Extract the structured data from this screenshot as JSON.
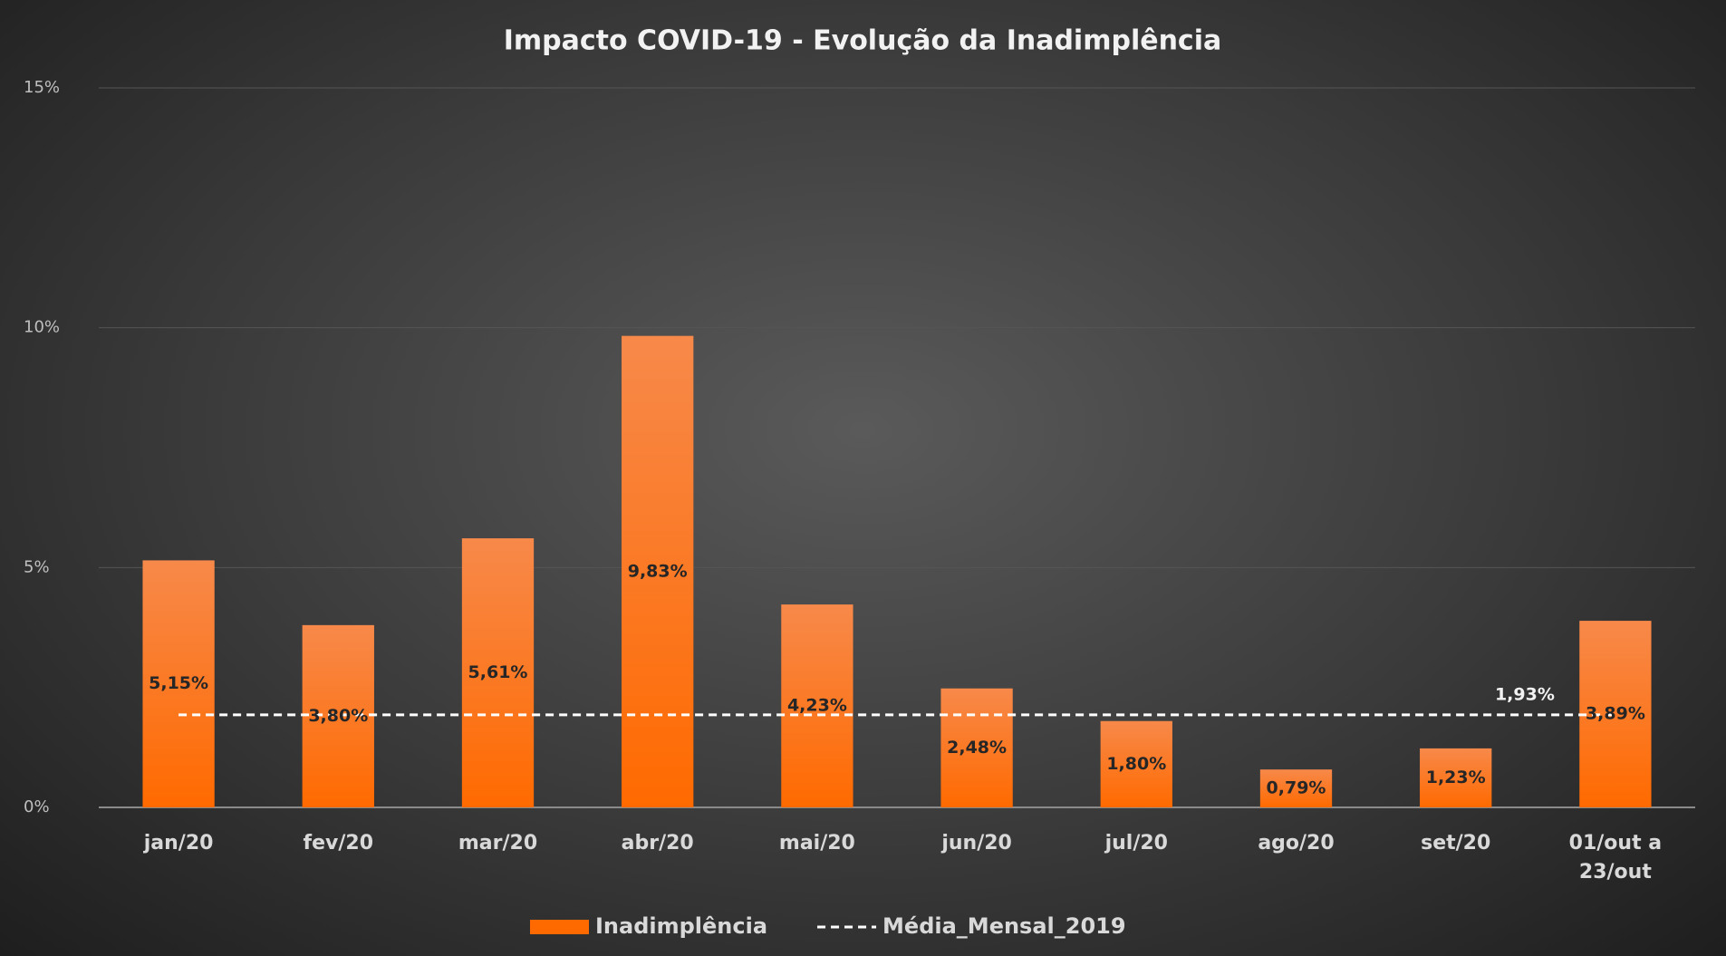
{
  "chart_data": {
    "type": "bar",
    "title": "Impacto COVID-19 - Evolução da Inadimplência",
    "categories": [
      "jan/20",
      "fev/20",
      "mar/20",
      "abr/20",
      "mai/20",
      "jun/20",
      "jul/20",
      "ago/20",
      "set/20",
      "01/out a 23/out"
    ],
    "series": [
      {
        "name": "Inadimplência",
        "type": "bar",
        "color": "#ff6a00",
        "values": [
          5.15,
          3.8,
          5.61,
          9.83,
          4.23,
          2.48,
          1.8,
          0.79,
          1.23,
          3.89
        ],
        "value_labels": [
          "5,15%",
          "3,80%",
          "5,61%",
          "9,83%",
          "4,23%",
          "2,48%",
          "1,80%",
          "0,79%",
          "1,23%",
          "3,89%"
        ]
      },
      {
        "name": "Média_Mensal_2019",
        "type": "line",
        "color": "#ffffff",
        "dashed": true,
        "values": [
          1.93,
          1.93,
          1.93,
          1.93,
          1.93,
          1.93,
          1.93,
          1.93,
          1.93,
          1.93
        ],
        "value_labels": [
          null,
          null,
          null,
          null,
          null,
          null,
          null,
          null,
          null,
          "1,93%"
        ]
      }
    ],
    "ylim": [
      0,
      15
    ],
    "yticks": [
      {
        "value": 0,
        "label": "0%"
      },
      {
        "value": 5,
        "label": "5%"
      },
      {
        "value": 10,
        "label": "10%"
      },
      {
        "value": 15,
        "label": "15%"
      }
    ],
    "grid": true,
    "legend": "bottom"
  }
}
